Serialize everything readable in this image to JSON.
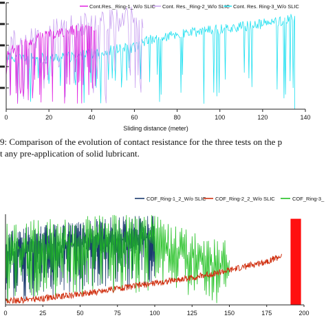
{
  "top_chart_legend": [
    "Cont.Res._Ring-1_W/o SLIC",
    "Cont. Res._Ring-2_W/o SLIC",
    "Cont. Res. Ring-3_W/o SLIC"
  ],
  "caption": {
    "line1": "9: Comparison of the evolution of contact resistance for the three tests on the p",
    "line2": "t any pre-application of solid lubricant."
  },
  "bottom_chart_legend": [
    "COF_Ring-1_2_W/o SLIC",
    "COF_Ring-2_2_W/o SLIC",
    "COF_Ring-3_"
  ],
  "chart_data": [
    {
      "type": "line",
      "xlabel": "Sliding distance (meter)",
      "ylabel": "",
      "xlim": [
        0,
        140
      ],
      "x_ticks": [
        0,
        20,
        40,
        60,
        80,
        100,
        120,
        140
      ],
      "y_tick_labels": [
        "",
        "",
        "",
        "",
        ""
      ],
      "grid": false,
      "legend": "top",
      "series": [
        {
          "name": "Cont.Res._Ring-1_W/o SLIC",
          "color": "#e020e0",
          "x": [
            0,
            5,
            10,
            15,
            20,
            25,
            30,
            35,
            40,
            42
          ],
          "y": [
            0.52,
            0.58,
            0.63,
            0.67,
            0.7,
            0.72,
            0.74,
            0.75,
            0.76,
            0.76
          ]
        },
        {
          "name": "Cont. Res._Ring-2_W/o SLIC",
          "color": "#c8a0f0",
          "x": [
            0,
            10,
            20,
            30,
            40,
            50,
            60,
            64
          ],
          "y": [
            0.6,
            0.66,
            0.72,
            0.77,
            0.8,
            0.83,
            0.85,
            0.86
          ]
        },
        {
          "name": "Cont. Res. Ring-3_W/o SLIC",
          "color": "#20e0f0",
          "x": [
            0,
            10,
            20,
            30,
            40,
            50,
            60,
            65,
            80,
            100,
            120,
            135
          ],
          "y": [
            0.5,
            0.48,
            0.48,
            0.49,
            0.52,
            0.56,
            0.58,
            0.64,
            0.7,
            0.75,
            0.8,
            0.85
          ]
        }
      ]
    },
    {
      "type": "line",
      "xlabel": "",
      "ylabel": "",
      "xlim": [
        0,
        200
      ],
      "x_ticks": [
        0,
        25,
        50,
        75,
        100,
        125,
        150,
        175,
        200
      ],
      "grid": false,
      "legend": "top-right",
      "series": [
        {
          "name": "COF_Ring-1_2_W/o SLIC",
          "color": "#1a3a6e",
          "x": [
            0,
            10,
            20,
            30,
            40,
            50,
            60,
            70,
            80,
            90,
            100
          ],
          "y": [
            0.55,
            0.6,
            0.62,
            0.64,
            0.66,
            0.68,
            0.7,
            0.72,
            0.73,
            0.74,
            0.75
          ]
        },
        {
          "name": "COF_Ring-2_2_W/o SLIC",
          "color": "#d03010",
          "x": [
            0,
            25,
            50,
            75,
            100,
            125,
            150,
            175,
            185
          ],
          "y": [
            0.04,
            0.07,
            0.12,
            0.18,
            0.24,
            0.3,
            0.38,
            0.48,
            0.54
          ]
        },
        {
          "name": "COF_Ring-3_",
          "color": "#20c020",
          "x": [
            0,
            20,
            40,
            60,
            80,
            100,
            110,
            120,
            130,
            140,
            150
          ],
          "y": [
            0.6,
            0.65,
            0.68,
            0.7,
            0.72,
            0.74,
            0.6,
            0.55,
            0.5,
            0.45,
            0.4
          ]
        }
      ]
    }
  ]
}
